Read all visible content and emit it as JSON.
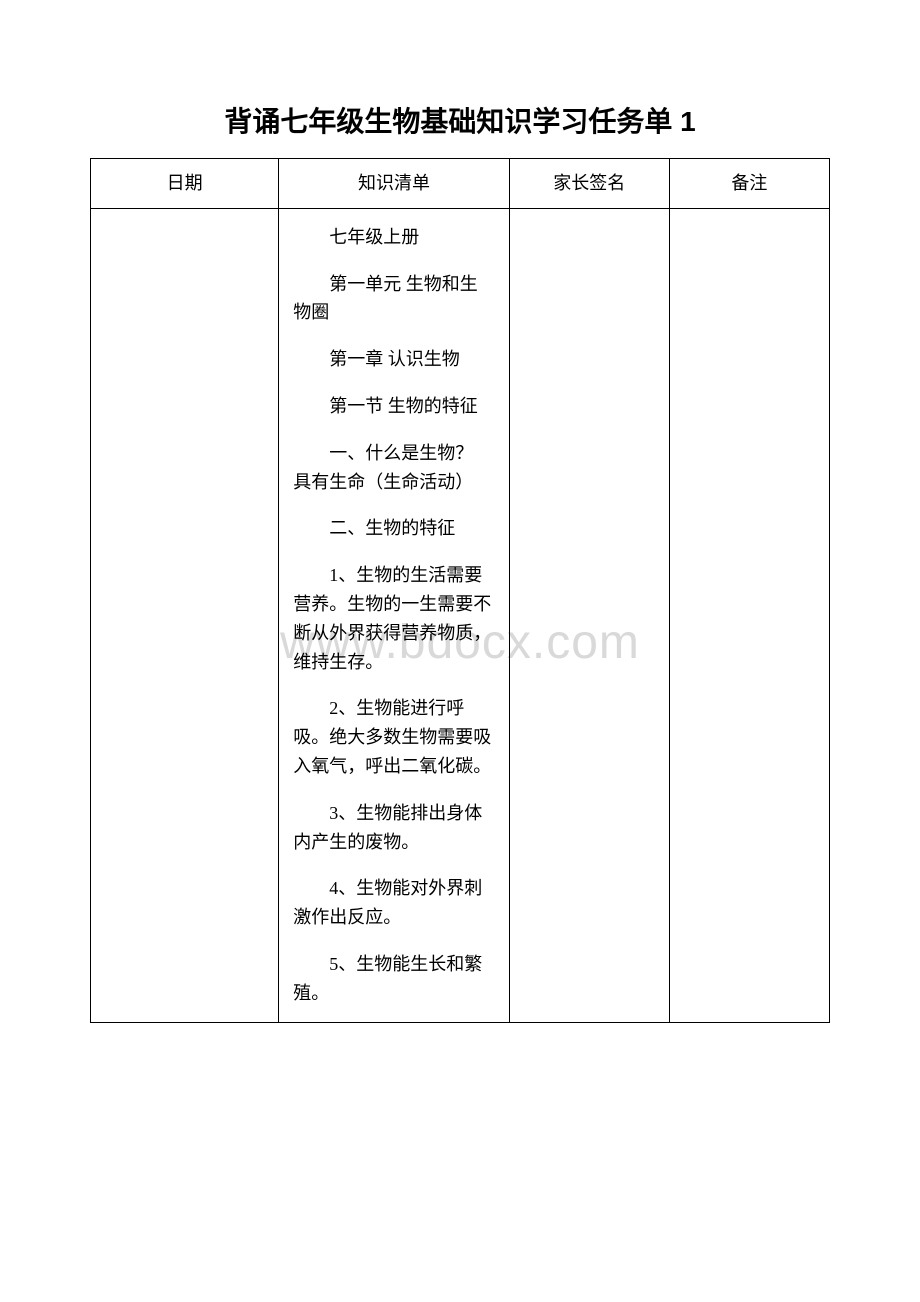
{
  "title": "背诵七年级生物基础知识学习任务单 1",
  "watermark": "www.bdocx.com",
  "table": {
    "headers": [
      "日期",
      "知识清单",
      "家长签名",
      "备注"
    ],
    "knowledge_paragraphs": [
      "七年级上册",
      "第一单元 生物和生物圈",
      "第一章 认识生物",
      "第一节 生物的特征",
      "一、什么是生物？  具有生命（生命活动）",
      "二、生物的特征",
      "1、生物的生活需要营养。生物的一生需要不断从外界获得营养物质，维持生存。",
      "2、生物能进行呼吸。绝大多数生物需要吸入氧气，呼出二氧化碳。",
      "3、生物能排出身体内产生的废物。",
      "4、生物能对外界刺激作出反应。",
      "5、生物能生长和繁殖。"
    ]
  }
}
